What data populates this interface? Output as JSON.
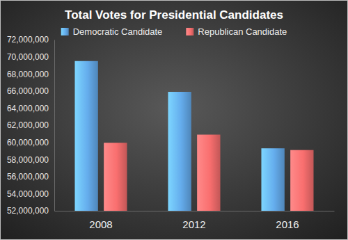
{
  "chart_data": {
    "type": "bar",
    "title": "Total Votes for Presidential Candidates",
    "categories": [
      "2008",
      "2012",
      "2016"
    ],
    "series": [
      {
        "name": "Democratic Candidate",
        "color": "#5b9bd5",
        "values": [
          69500000,
          65900000,
          59300000
        ]
      },
      {
        "name": "Republican Candidate",
        "color": "#e06464",
        "values": [
          59950000,
          60900000,
          59100000
        ]
      }
    ],
    "ylim": [
      52000000,
      72000000
    ],
    "yticks": [
      {
        "value": 52000000,
        "label": "52,000,000"
      },
      {
        "value": 54000000,
        "label": "54,000,000"
      },
      {
        "value": 56000000,
        "label": "56,000,000"
      },
      {
        "value": 58000000,
        "label": "58,000,000"
      },
      {
        "value": 60000000,
        "label": "60,000,000"
      },
      {
        "value": 62000000,
        "label": "62,000,000"
      },
      {
        "value": 64000000,
        "label": "64,000,000"
      },
      {
        "value": 66000000,
        "label": "66,000,000"
      },
      {
        "value": 68000000,
        "label": "68,000,000"
      },
      {
        "value": 70000000,
        "label": "70,000,000"
      },
      {
        "value": 72000000,
        "label": "72,000,000"
      }
    ],
    "grid": false,
    "legend": "top"
  }
}
